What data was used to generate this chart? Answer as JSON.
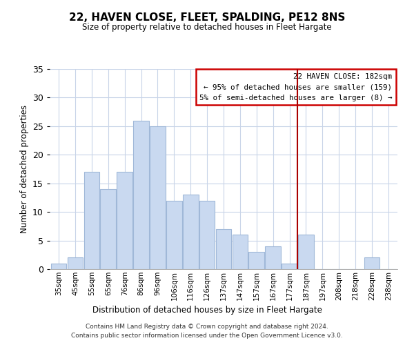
{
  "title": "22, HAVEN CLOSE, FLEET, SPALDING, PE12 8NS",
  "subtitle": "Size of property relative to detached houses in Fleet Hargate",
  "xlabel": "Distribution of detached houses by size in Fleet Hargate",
  "ylabel": "Number of detached properties",
  "bar_labels": [
    "35sqm",
    "45sqm",
    "55sqm",
    "65sqm",
    "76sqm",
    "86sqm",
    "96sqm",
    "106sqm",
    "116sqm",
    "126sqm",
    "137sqm",
    "147sqm",
    "157sqm",
    "167sqm",
    "177sqm",
    "187sqm",
    "197sqm",
    "208sqm",
    "218sqm",
    "228sqm",
    "238sqm"
  ],
  "bar_heights": [
    1,
    2,
    17,
    14,
    17,
    26,
    25,
    12,
    13,
    12,
    7,
    6,
    3,
    4,
    1,
    6,
    0,
    0,
    0,
    2,
    0
  ],
  "bar_color": "#c9d9f0",
  "bar_edge_color": "#a0b8d8",
  "vline_color": "#aa0000",
  "ylim": [
    0,
    35
  ],
  "yticks": [
    0,
    5,
    10,
    15,
    20,
    25,
    30,
    35
  ],
  "annotation_title": "22 HAVEN CLOSE: 182sqm",
  "annotation_line1": "← 95% of detached houses are smaller (159)",
  "annotation_line2": "5% of semi-detached houses are larger (8) →",
  "footer_line1": "Contains HM Land Registry data © Crown copyright and database right 2024.",
  "footer_line2": "Contains public sector information licensed under the Open Government Licence v3.0."
}
